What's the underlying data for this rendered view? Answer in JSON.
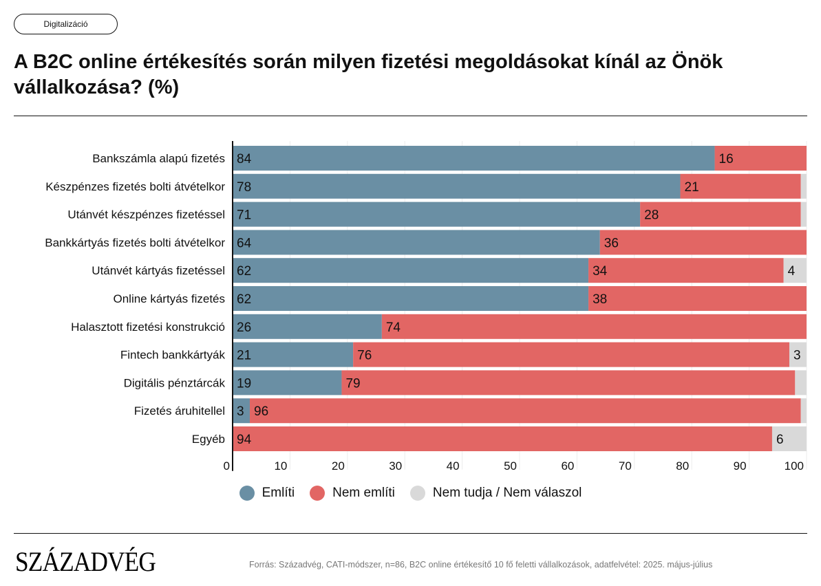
{
  "tag": "Digitalizáció",
  "title": "A B2C online értékesítés során milyen fizetési megoldásokat kínál az Önök vállalkozása? (%)",
  "logo": "Századvég",
  "source": "Forrás: Századvég, CATI-módszer, n=86, B2C online értékesítő 10 fő feletti vállalkozások, adatfelvétel: 2025. május-július",
  "colors": {
    "emliti": "#6a8fa4",
    "nem_emliti": "#e26664",
    "nem_tudja": "#d9d9d9"
  },
  "chart_data": {
    "type": "bar",
    "orientation": "horizontal",
    "stacked": true,
    "title": "A B2C online értékesítés során milyen fizetési megoldásokat kínál az Önök vállalkozása? (%)",
    "xlabel": "",
    "ylabel": "",
    "xlim": [
      0,
      100
    ],
    "xticks": [
      0,
      10,
      20,
      30,
      40,
      50,
      60,
      70,
      80,
      90,
      100
    ],
    "grid": true,
    "legend_position": "bottom",
    "categories": [
      "Bankszámla alapú fizetés",
      "Készpénzes fizetés bolti átvételkor",
      "Utánvét készpénzes fizetéssel",
      "Bankkártyás fizetés bolti átvételkor",
      "Utánvét kártyás fizetéssel",
      "Online kártyás fizetés",
      "Halasztott fizetési konstrukció",
      "Fintech bankkártyák",
      "Digitális pénztárcák",
      "Fizetés áruhitellel",
      "Egyéb"
    ],
    "series": [
      {
        "name": "Említi",
        "color": "#6a8fa4",
        "values": [
          84,
          78,
          71,
          64,
          62,
          62,
          26,
          21,
          19,
          3,
          0
        ],
        "labels": [
          "84",
          "78",
          "71",
          "64",
          "62",
          "62",
          "26",
          "21",
          "19",
          "3",
          ""
        ]
      },
      {
        "name": "Nem említi",
        "color": "#e26664",
        "values": [
          16,
          21,
          28,
          36,
          34,
          38,
          74,
          76,
          79,
          96,
          94
        ],
        "labels": [
          "16",
          "21",
          "28",
          "36",
          "34",
          "38",
          "74",
          "76",
          "79",
          "96",
          "94"
        ]
      },
      {
        "name": "Nem tudja / Nem válaszol",
        "color": "#d9d9d9",
        "values": [
          0,
          1,
          1,
          0,
          4,
          0,
          0,
          3,
          2,
          1,
          6
        ],
        "labels": [
          "",
          "",
          "",
          "",
          "4",
          "",
          "",
          "3",
          "",
          "",
          "6"
        ]
      }
    ]
  }
}
